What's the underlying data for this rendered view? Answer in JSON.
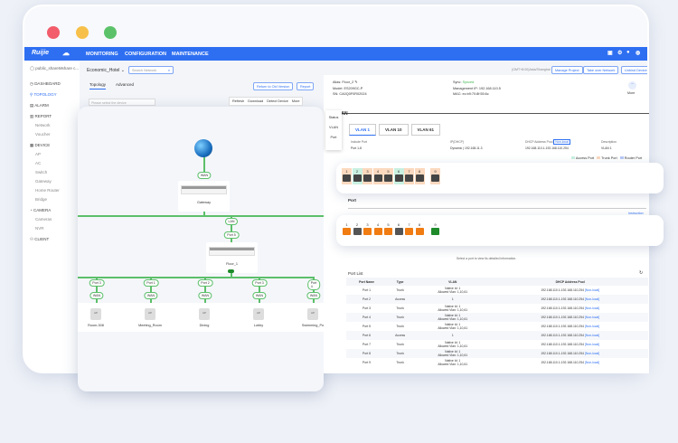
{
  "nav": {
    "logo": "Ruijie",
    "items": [
      "MONITORING",
      "CONFIGURATION",
      "MAINTENANCE"
    ]
  },
  "sidebar": {
    "account": "public_shareMshare c...",
    "items": [
      {
        "label": "DASHBOARD"
      },
      {
        "label": "TOPOLOGY",
        "active": true
      },
      {
        "label": "ALARM"
      },
      {
        "label": "REPORT",
        "subs": [
          "Network",
          "Voucher"
        ]
      },
      {
        "label": "DEVICE",
        "subs": [
          "AP",
          "AC",
          "Switch",
          "Gateway",
          "Home Router",
          "Bridge"
        ]
      },
      {
        "label": "CAMERA",
        "subs": [
          "Cameras",
          "NVR"
        ]
      },
      {
        "label": "CLIENT"
      }
    ]
  },
  "header": {
    "project": "Economic_Hotel",
    "search_placeholder": "Search Network",
    "timezone": "(GMT+8:00)Asia/Shanghai",
    "buttons": {
      "manage": "Manage Project",
      "takeover": "Take over Network",
      "unbind": "Unbind Device"
    }
  },
  "topology": {
    "tabs": [
      "Topology",
      "Advanced"
    ],
    "return_btn": "Return to Old Version",
    "report_btn": "Report",
    "device_placeholder": "Please select the device",
    "toolbar": [
      "Refresh",
      "Download",
      "Detect Device",
      "More"
    ],
    "gateway": {
      "wan": "WAN",
      "name": "Gateway"
    },
    "switch": {
      "lan": "LAN",
      "port": "Port 5",
      "name": "Floor_1"
    },
    "aps": [
      {
        "port": "Port 3",
        "wan": "WAN",
        "name": "Room-308"
      },
      {
        "port": "Port 1",
        "wan": "WAN",
        "name": "Meeting_Room"
      },
      {
        "port": "Port 2",
        "wan": "WAN",
        "name": "Dining"
      },
      {
        "port": "Port 3",
        "wan": "WAN",
        "name": "Lobby"
      },
      {
        "port": "Port 4",
        "wan": "WAN",
        "name": "Swimming_Po"
      }
    ],
    "ap_icon": "AP"
  },
  "device": {
    "alias": "Alias: Floor_2",
    "model": "Model: ES209GC-P",
    "sn": "SN: CA0Q0F0R02024",
    "sync_label": "Sync:",
    "sync_value": "Synced",
    "mgmt_ip": "Management IP: 192.168.110.5",
    "mac": "MAC: ec:b9:70:8f:55:6c",
    "more": "More"
  },
  "detail_tabs": [
    "Status",
    "VLAN",
    "Port"
  ],
  "vlan": {
    "title": "VLAN",
    "tabs": [
      "VLAN 1",
      "VLAN 10",
      "VLAN 61"
    ],
    "headers": [
      "Include Port",
      "IP(DHCP)",
      "DHCP Address Pool",
      "Description"
    ],
    "nonlocal_badge": "Non-local",
    "row": [
      "Port 1-8",
      "Dynamic | 192.168.11.3",
      "192.168.110.1-192.168.110.254",
      "VLAN 1"
    ],
    "legend": [
      "Access Port",
      "Trunk Port",
      "Router Port"
    ]
  },
  "vlan_ports": [
    {
      "n": "1",
      "type": "trunk"
    },
    {
      "n": "2",
      "type": "access"
    },
    {
      "n": "3",
      "type": "trunk"
    },
    {
      "n": "4",
      "type": "trunk"
    },
    {
      "n": "5",
      "type": "trunk"
    },
    {
      "n": "6",
      "type": "access"
    },
    {
      "n": "7",
      "type": "trunk"
    },
    {
      "n": "8",
      "type": "trunk"
    },
    {
      "n": "9",
      "type": "router"
    }
  ],
  "port_section": {
    "title": "Port",
    "instruction": "Instruction",
    "hint": "Select a port to view its detailed information."
  },
  "port_status": [
    {
      "n": "1",
      "state": "up"
    },
    {
      "n": "2",
      "state": "down"
    },
    {
      "n": "3",
      "state": "up"
    },
    {
      "n": "4",
      "state": "up"
    },
    {
      "n": "5",
      "state": "up"
    },
    {
      "n": "6",
      "state": "down"
    },
    {
      "n": "7",
      "state": "up"
    },
    {
      "n": "8",
      "state": "up"
    },
    {
      "n": "9",
      "state": "uplink"
    }
  ],
  "port_list": {
    "title": "Port List",
    "headers": [
      "Port Name",
      "Type",
      "VLAN",
      "DHCP Address Pool"
    ],
    "rows": [
      {
        "name": "Port 1",
        "type": "Trunk",
        "vlan": "Native Id: 1\nAllowed Vlan: 1,10,61",
        "pool": "192.168.110.1-192.168.110.254",
        "tag": "[Non-local]"
      },
      {
        "name": "Port 2",
        "type": "Access",
        "vlan": "1",
        "pool": "192.168.110.1-192.168.110.254",
        "tag": "[Non-local]"
      },
      {
        "name": "Port 3",
        "type": "Trunk",
        "vlan": "Native Id: 1\nAllowed Vlan: 1,10,61",
        "pool": "192.168.110.1-192.168.110.254",
        "tag": "[Non-local]"
      },
      {
        "name": "Port 4",
        "type": "Trunk",
        "vlan": "Native Id: 1\nAllowed Vlan: 1,10,61",
        "pool": "192.168.110.1-192.168.110.254",
        "tag": "[Non-local]"
      },
      {
        "name": "Port 5",
        "type": "Trunk",
        "vlan": "Native Id: 1\nAllowed Vlan: 1,10,61",
        "pool": "192.168.110.1-192.168.110.254",
        "tag": "[Non-local]"
      },
      {
        "name": "Port 6",
        "type": "Access",
        "vlan": "1",
        "pool": "192.168.110.1-192.168.110.254",
        "tag": "[Non-local]"
      },
      {
        "name": "Port 7",
        "type": "Trunk",
        "vlan": "Native Id: 1\nAllowed Vlan: 1,10,61",
        "pool": "192.168.110.1-192.168.110.254",
        "tag": "[Non-local]"
      },
      {
        "name": "Port 8",
        "type": "Trunk",
        "vlan": "Native Id: 1\nAllowed Vlan: 1,10,61",
        "pool": "192.168.110.1-192.168.110.254",
        "tag": "[Non-local]"
      },
      {
        "name": "Port 9",
        "type": "Trunk",
        "vlan": "Native Id: 1\nAllowed Vlan: 1,10,61",
        "pool": "192.168.110.1-192.168.110.254",
        "tag": "[Non-local]"
      }
    ]
  },
  "colors": {
    "brand": "#2e6ff2",
    "access": "#c9f0e0",
    "trunk": "#fbd9bf",
    "port_up": "#f07c12",
    "port_down": "#555555",
    "uplink": "#1e8a2a",
    "link": "#5cbf6a"
  }
}
